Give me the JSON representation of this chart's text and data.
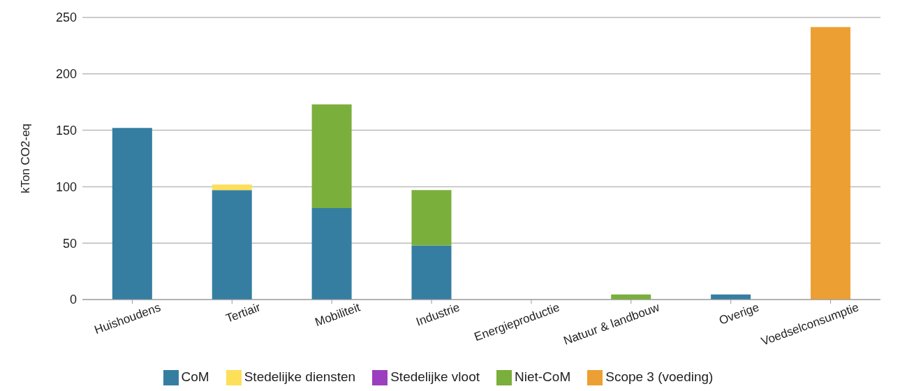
{
  "chart_data": {
    "type": "bar",
    "stacked": true,
    "ylabel": "kTon CO2-eq",
    "categories": [
      "Huishoudens",
      "Tertiair",
      "Mobiliteit",
      "Industrie",
      "Energieproductie",
      "Natuur & landbouw",
      "Overige",
      "Voedselconsumptie"
    ],
    "series": [
      {
        "name": "CoM",
        "color": "#357ea2",
        "values": [
          152,
          97,
          81,
          48,
          0,
          0,
          4.5,
          0
        ]
      },
      {
        "name": "Stedelijke diensten",
        "color": "#fddf5a",
        "values": [
          0,
          5,
          0,
          0,
          0,
          0,
          0,
          0
        ]
      },
      {
        "name": "Stedelijke vloot",
        "color": "#9b3fbf",
        "values": [
          0,
          0,
          0,
          0,
          0,
          0,
          0,
          0
        ]
      },
      {
        "name": "Niet-CoM",
        "color": "#7aaf3c",
        "values": [
          0,
          0,
          92,
          49,
          0,
          4.5,
          0,
          0
        ]
      },
      {
        "name": "Scope 3 (voeding)",
        "color": "#eca033",
        "values": [
          0,
          0,
          0,
          0,
          0,
          0,
          0,
          241.5
        ]
      }
    ],
    "ylim": [
      0,
      250
    ],
    "yticks": [
      0,
      50,
      100,
      150,
      200,
      250
    ],
    "grid": "y",
    "legend": "bottom"
  }
}
